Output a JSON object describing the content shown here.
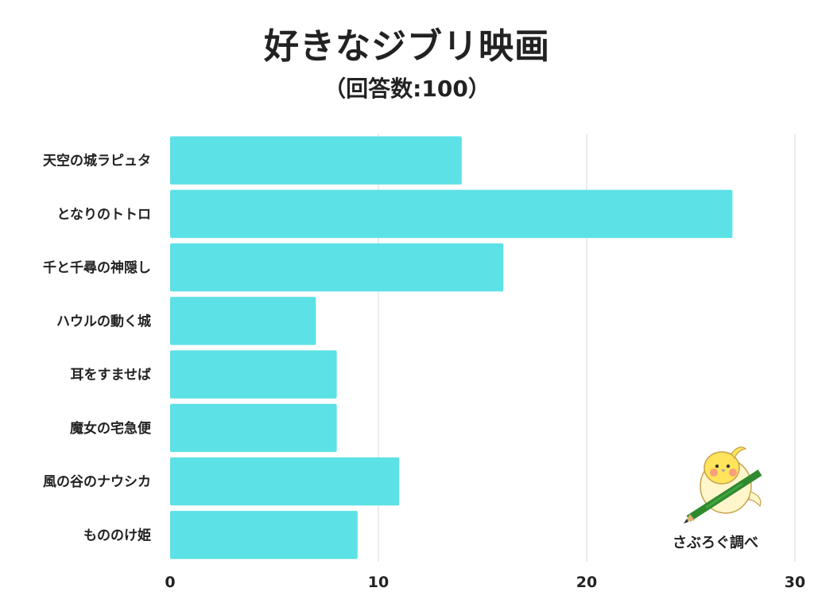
{
  "title": "好きなジブリ映画",
  "subtitle": "（回答数:100）",
  "credit": "さぶろぐ調べ",
  "colors": {
    "bar": "#5ce1e6",
    "grid": "#d9d9d9",
    "text": "#222222"
  },
  "chart_data": {
    "type": "bar",
    "orientation": "horizontal",
    "title": "好きなジブリ映画",
    "subtitle": "（回答数:100）",
    "categories": [
      "天空の城ラピュタ",
      "となりのトトロ",
      "千と千尋の神隠し",
      "ハウルの動く城",
      "耳をすませば",
      "魔女の宅急便",
      "風の谷のナウシカ",
      "もののけ姫"
    ],
    "values": [
      14,
      27,
      16,
      7,
      8,
      8,
      11,
      9
    ],
    "xlim": [
      0,
      30
    ],
    "xticks": [
      0,
      10,
      20,
      30
    ],
    "grid": true,
    "xlabel": "",
    "ylabel": ""
  }
}
